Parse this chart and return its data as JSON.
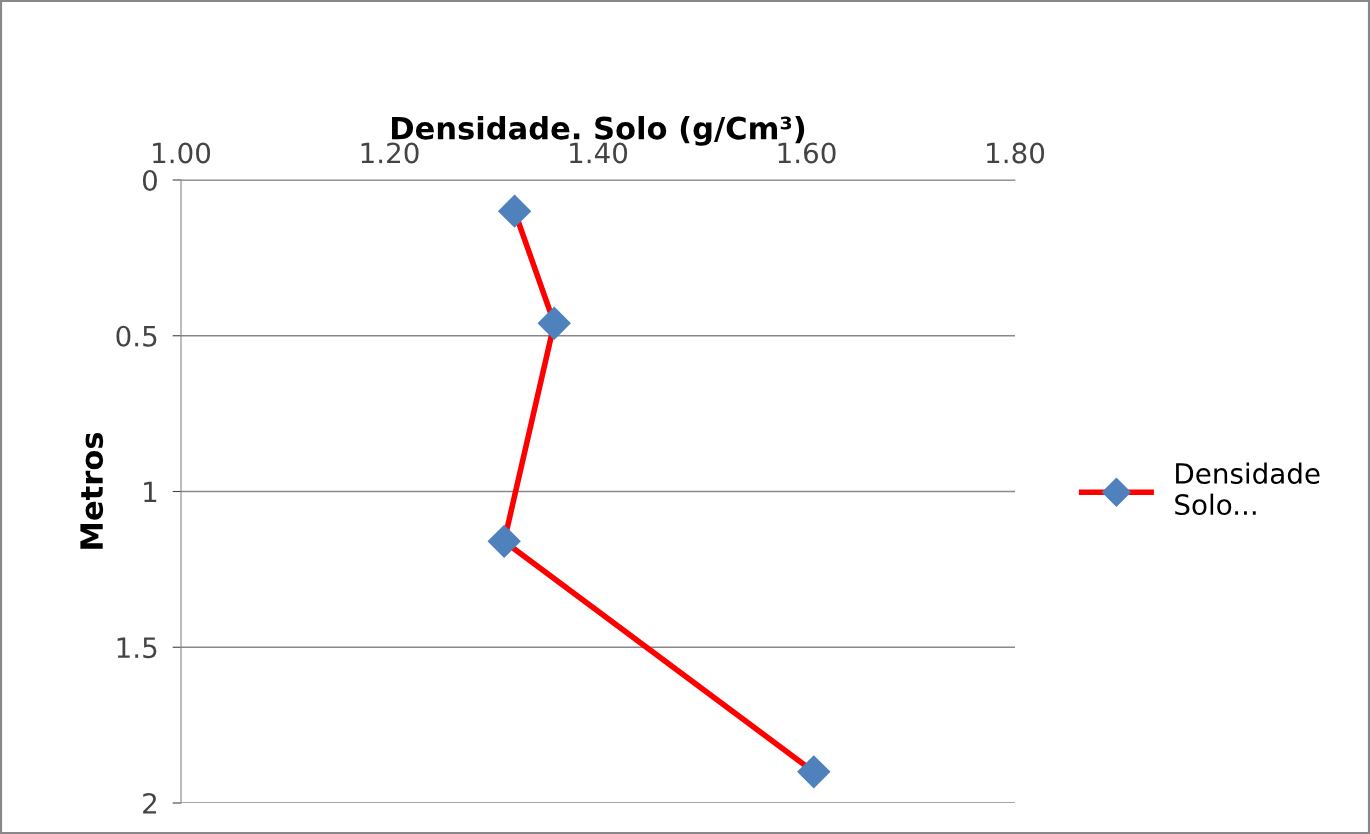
{
  "chart_data": {
    "type": "line",
    "xlabel": "Densidade. Solo (g/Cm³)",
    "ylabel": "Metros",
    "x": [
      1.32,
      1.358,
      1.31,
      1.607
    ],
    "series": [
      {
        "name": "Densidade\nSolo...",
        "color": "#ff0000",
        "colors": [
          "#4f81bd",
          "#4f81bd",
          "#4f81bd",
          "#4f81bd"
        ],
        "values": [
          0.1,
          0.46,
          1.16,
          1.9
        ]
      }
    ],
    "xlim": [
      1.0,
      1.8
    ],
    "xticks": [
      {
        "value": 1.0,
        "label": "1.00"
      },
      {
        "value": 1.2,
        "label": "1.20"
      },
      {
        "value": 1.4,
        "label": "1.40"
      },
      {
        "value": 1.6,
        "label": "1.60"
      },
      {
        "value": 1.8,
        "label": "1.80"
      }
    ],
    "ylim": [
      2,
      0
    ],
    "yticks": [
      0,
      0.5,
      1,
      1.5,
      2
    ],
    "grid": "y",
    "legend": "right",
    "marker": "diamond",
    "line_style": "solid"
  }
}
